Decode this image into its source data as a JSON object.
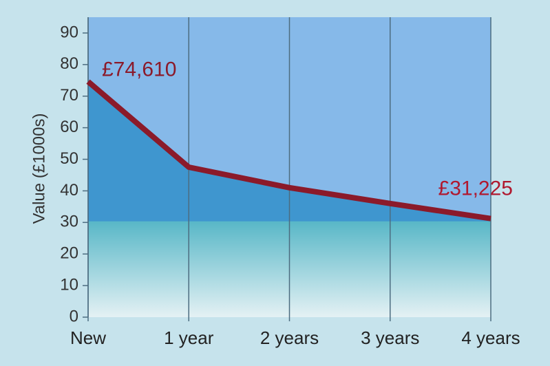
{
  "chart_data": {
    "type": "area",
    "categories": [
      "New",
      "1 year",
      "2 years",
      "3 years",
      "4 years"
    ],
    "series": [
      {
        "color": "#8b1a2a",
        "values": [
          74.61,
          47.5,
          41,
          36,
          31.225
        ],
        "value_labels": [
          "£74,610",
          null,
          null,
          null,
          "£31,225"
        ]
      }
    ],
    "ylabel": "Value (£1000s)",
    "ylim": [
      0,
      95
    ],
    "yticks": [
      0,
      10,
      20,
      30,
      40,
      50,
      60,
      70,
      80,
      90
    ],
    "grid": true
  }
}
